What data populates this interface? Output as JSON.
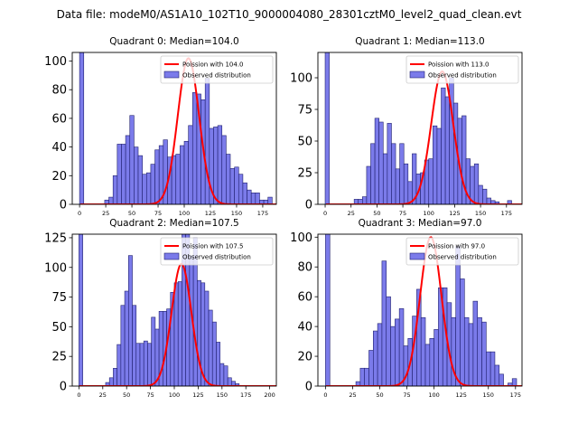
{
  "figure_title": "Data file: modeM0/AS1A10_102T10_9000004080_28301cztM0_level2_quad_clean.evt",
  "colors": {
    "bar_fill": "#7b7bea",
    "bar_edge": "#1f1f6e",
    "poisson_line": "#ff0000",
    "axes": "#000000"
  },
  "chart_data": [
    {
      "type": "bar",
      "title": "Quadrant 0: Median=104.0",
      "bin_width": 4,
      "bin_starts": [
        0,
        4,
        8,
        12,
        16,
        20,
        24,
        28,
        32,
        36,
        40,
        44,
        48,
        52,
        56,
        60,
        64,
        68,
        72,
        76,
        80,
        84,
        88,
        92,
        96,
        100,
        104,
        108,
        112,
        116,
        120,
        124,
        128,
        132,
        136,
        140,
        144,
        148,
        152,
        156,
        160,
        164,
        168,
        172,
        176,
        180
      ],
      "values": [
        106,
        0,
        0,
        0,
        0,
        0,
        3,
        5,
        20,
        42,
        42,
        48,
        62,
        40,
        34,
        21,
        22,
        28,
        38,
        41,
        45,
        33,
        34,
        35,
        41,
        44,
        55,
        78,
        77,
        73,
        88,
        53,
        54,
        55,
        48,
        35,
        25,
        26,
        21,
        15,
        10,
        8,
        8,
        3,
        3,
        5
      ],
      "xlim": [
        -7,
        188
      ],
      "ylim": [
        0,
        106
      ],
      "xticks": [
        0,
        25,
        50,
        75,
        100,
        125,
        150,
        175
      ],
      "yticks": [
        0,
        20,
        40,
        60,
        80,
        100
      ],
      "poisson_mean": 104.0,
      "poisson_peak": 102,
      "legend": [
        "Poission with 104.0",
        "Observed distribution"
      ]
    },
    {
      "type": "bar",
      "title": "Quadrant 1: Median=113.0",
      "bin_width": 4,
      "bin_starts": [
        0,
        4,
        8,
        12,
        16,
        20,
        24,
        28,
        32,
        36,
        40,
        44,
        48,
        52,
        56,
        60,
        64,
        68,
        72,
        76,
        80,
        84,
        88,
        92,
        96,
        100,
        104,
        108,
        112,
        116,
        120,
        124,
        128,
        132,
        136,
        140,
        144,
        148,
        152,
        156,
        160,
        164,
        168,
        172,
        176,
        180,
        184
      ],
      "values": [
        120,
        0,
        0,
        0,
        0,
        0,
        0,
        4,
        4,
        6,
        30,
        48,
        68,
        65,
        40,
        64,
        48,
        28,
        48,
        32,
        18,
        40,
        24,
        25,
        35,
        36,
        62,
        60,
        92,
        85,
        100,
        80,
        68,
        70,
        36,
        30,
        32,
        15,
        12,
        5,
        3,
        2,
        0,
        0,
        3,
        0,
        0
      ],
      "xlim": [
        -7,
        190
      ],
      "ylim": [
        0,
        120
      ],
      "xticks": [
        0,
        25,
        50,
        75,
        100,
        125,
        150,
        175
      ],
      "yticks": [
        0,
        25,
        50,
        75,
        100
      ],
      "poisson_mean": 113.0,
      "poisson_peak": 105,
      "legend": [
        "Poission with 113.0",
        "Observed distribution"
      ]
    },
    {
      "type": "bar",
      "title": "Quadrant 2: Median=107.5",
      "bin_width": 4,
      "bin_starts": [
        0,
        4,
        8,
        12,
        16,
        20,
        24,
        28,
        32,
        36,
        40,
        44,
        48,
        52,
        56,
        60,
        64,
        68,
        72,
        76,
        80,
        84,
        88,
        92,
        96,
        100,
        104,
        108,
        112,
        116,
        120,
        124,
        128,
        132,
        136,
        140,
        144,
        148,
        152,
        156,
        160,
        164,
        168,
        172,
        176,
        180,
        184,
        188,
        192,
        196
      ],
      "values": [
        128,
        0,
        0,
        0,
        0,
        0,
        0,
        3,
        7,
        15,
        35,
        68,
        80,
        110,
        68,
        36,
        36,
        38,
        36,
        58,
        48,
        63,
        63,
        65,
        79,
        87,
        88,
        128,
        128,
        110,
        125,
        89,
        87,
        80,
        64,
        54,
        37,
        19,
        17,
        7,
        4,
        2,
        0,
        0,
        0,
        0,
        0,
        0,
        0,
        0
      ],
      "xlim": [
        -7,
        207
      ],
      "ylim": [
        0,
        128
      ],
      "xticks": [
        0,
        25,
        50,
        75,
        100,
        125,
        150,
        175,
        200
      ],
      "yticks": [
        0,
        25,
        50,
        75,
        100,
        125
      ],
      "poisson_mean": 107.5,
      "poisson_peak": 103,
      "legend": [
        "Poission with 107.5",
        "Observed distribution"
      ]
    },
    {
      "type": "bar",
      "title": "Quadrant 3: Median=97.0",
      "bin_width": 4,
      "bin_starts": [
        0,
        4,
        8,
        12,
        16,
        20,
        24,
        28,
        32,
        36,
        40,
        44,
        48,
        52,
        56,
        60,
        64,
        68,
        72,
        76,
        80,
        84,
        88,
        92,
        96,
        100,
        104,
        108,
        112,
        116,
        120,
        124,
        128,
        132,
        136,
        140,
        144,
        148,
        152,
        156,
        160,
        164,
        168,
        172
      ],
      "values": [
        102,
        0,
        0,
        0,
        0,
        0,
        0,
        3,
        12,
        12,
        24,
        37,
        42,
        84,
        60,
        40,
        45,
        52,
        27,
        32,
        47,
        65,
        46,
        28,
        32,
        38,
        66,
        66,
        56,
        46,
        94,
        72,
        46,
        42,
        57,
        46,
        43,
        23,
        23,
        14,
        8,
        0,
        2,
        5
      ],
      "xlim": [
        -7,
        181
      ],
      "ylim": [
        0,
        102
      ],
      "xticks": [
        0,
        25,
        50,
        75,
        100,
        125,
        150,
        175
      ],
      "yticks": [
        0,
        20,
        40,
        60,
        80,
        100
      ],
      "poisson_mean": 97.0,
      "poisson_peak": 100,
      "legend": [
        "Poission with 97.0",
        "Observed distribution"
      ]
    }
  ]
}
